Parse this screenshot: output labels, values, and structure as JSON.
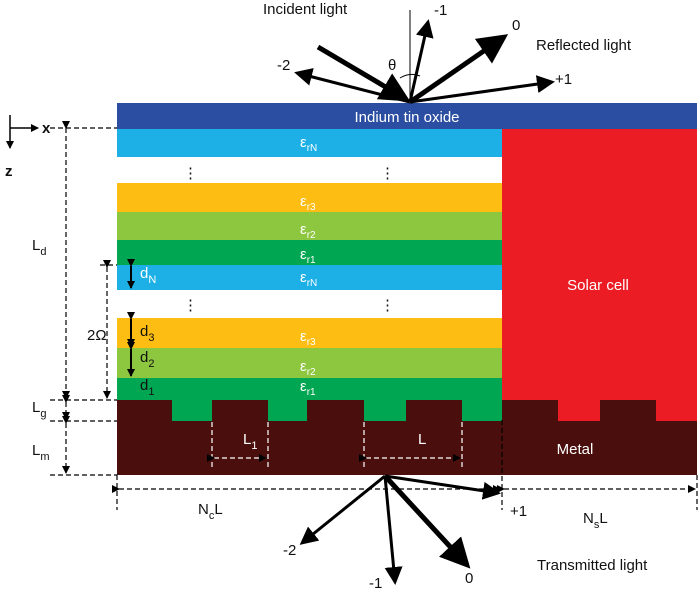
{
  "incident": "Incident light",
  "reflected": {
    "title": "Reflected light",
    "orders": [
      "-2",
      "-1",
      "0",
      "+1"
    ],
    "angle": "θ"
  },
  "transmitted": {
    "title": "Transmitted light",
    "orders": [
      "-2",
      "-1",
      "0",
      "+1"
    ]
  },
  "axes": {
    "x": "x",
    "z": "z"
  },
  "layers": {
    "ito": "Indium tin oxide",
    "solar_cell": "Solar cell",
    "metal": "Metal",
    "eps": {
      "base": "ε",
      "subs": [
        "rN",
        "r3",
        "r2",
        "r1"
      ]
    },
    "dots": "⋮"
  },
  "dims": {
    "Ld": {
      "base": "L",
      "sub": "d"
    },
    "Lg": {
      "base": "L",
      "sub": "g"
    },
    "Lm": {
      "base": "L",
      "sub": "m"
    },
    "period2": "2Ω",
    "dN": {
      "base": "d",
      "sub": "N"
    },
    "d3": {
      "base": "d",
      "sub": "3"
    },
    "d2": {
      "base": "d",
      "sub": "2"
    },
    "d1": {
      "base": "d",
      "sub": "1"
    },
    "L1": {
      "base": "L",
      "sub": "1"
    },
    "L": "L",
    "NcL": {
      "pre": "N",
      "sub": "c",
      "post": "L"
    },
    "NsL": {
      "pre": "N",
      "sub": "s",
      "post": "L"
    }
  }
}
